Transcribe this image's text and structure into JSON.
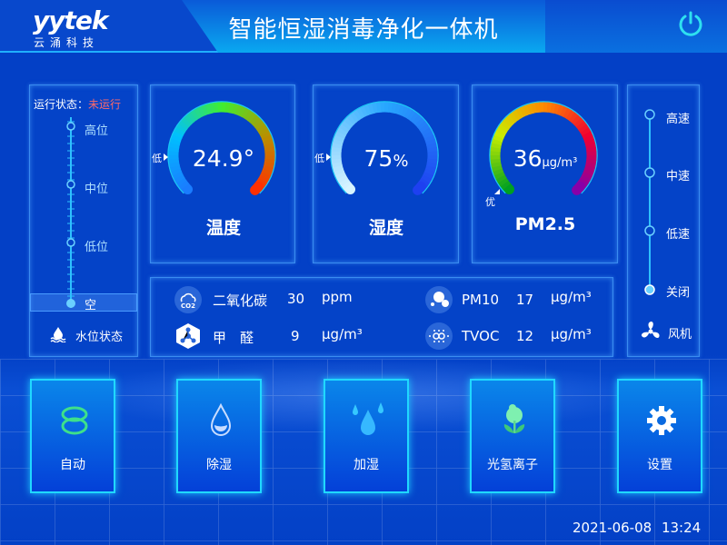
{
  "header": {
    "logo": "yytek",
    "logo_sub": "云涌科技",
    "title": "智能恒湿消毒净化一体机",
    "power_icon": "power-icon"
  },
  "water": {
    "status_label": "运行状态：",
    "status_value": "未运行",
    "status_color": "#ff6a6a",
    "levels": [
      "高位",
      "中位",
      "低位",
      "空"
    ],
    "selected": "空",
    "footer": "水位状态"
  },
  "gauges": [
    {
      "name": "温度",
      "value": "24.9",
      "unit": "°",
      "marker": "低",
      "colors": [
        "#1a7cff",
        "#00c0ff",
        "#40ee30",
        "#b89000",
        "#ff3000"
      ]
    },
    {
      "name": "湿度",
      "value": "75",
      "unit": "%",
      "marker": "低",
      "colors": [
        "#d8f4ff",
        "#28a8ff",
        "#1e40f0"
      ]
    },
    {
      "name": "PM2.5",
      "value": "36",
      "unit": "μg/m³",
      "marker": "优",
      "colors": [
        "#00a020",
        "#c8ee00",
        "#ff8a00",
        "#f00030",
        "#8800a8"
      ]
    }
  ],
  "sensors": [
    {
      "name": "二氧化碳",
      "value": "30",
      "unit": "ppm",
      "icon": "co2-cloud-icon"
    },
    {
      "name": "PM10",
      "value": "17",
      "unit": "μg/m³",
      "icon": "particles-icon"
    },
    {
      "name": "甲　醛",
      "value": "9",
      "unit": "μg/m³",
      "icon": "molecule-icon"
    },
    {
      "name": "TVOC",
      "value": "12",
      "unit": "μg/m³",
      "icon": "tvoc-icon"
    }
  ],
  "fan": {
    "speeds": [
      "高速",
      "中速",
      "低速",
      "关闭"
    ],
    "selected": "关闭",
    "footer": "风机"
  },
  "buttons": [
    {
      "label": "自动",
      "icon": "auto-icon"
    },
    {
      "label": "除湿",
      "icon": "dehumidify-drop-icon"
    },
    {
      "label": "加湿",
      "icon": "humidify-drops-icon"
    },
    {
      "label": "光氢离子",
      "icon": "ion-tree-icon"
    },
    {
      "label": "设置",
      "icon": "gear-icon"
    }
  ],
  "datetime": {
    "date": "2021-06-08",
    "time": "13:24"
  }
}
